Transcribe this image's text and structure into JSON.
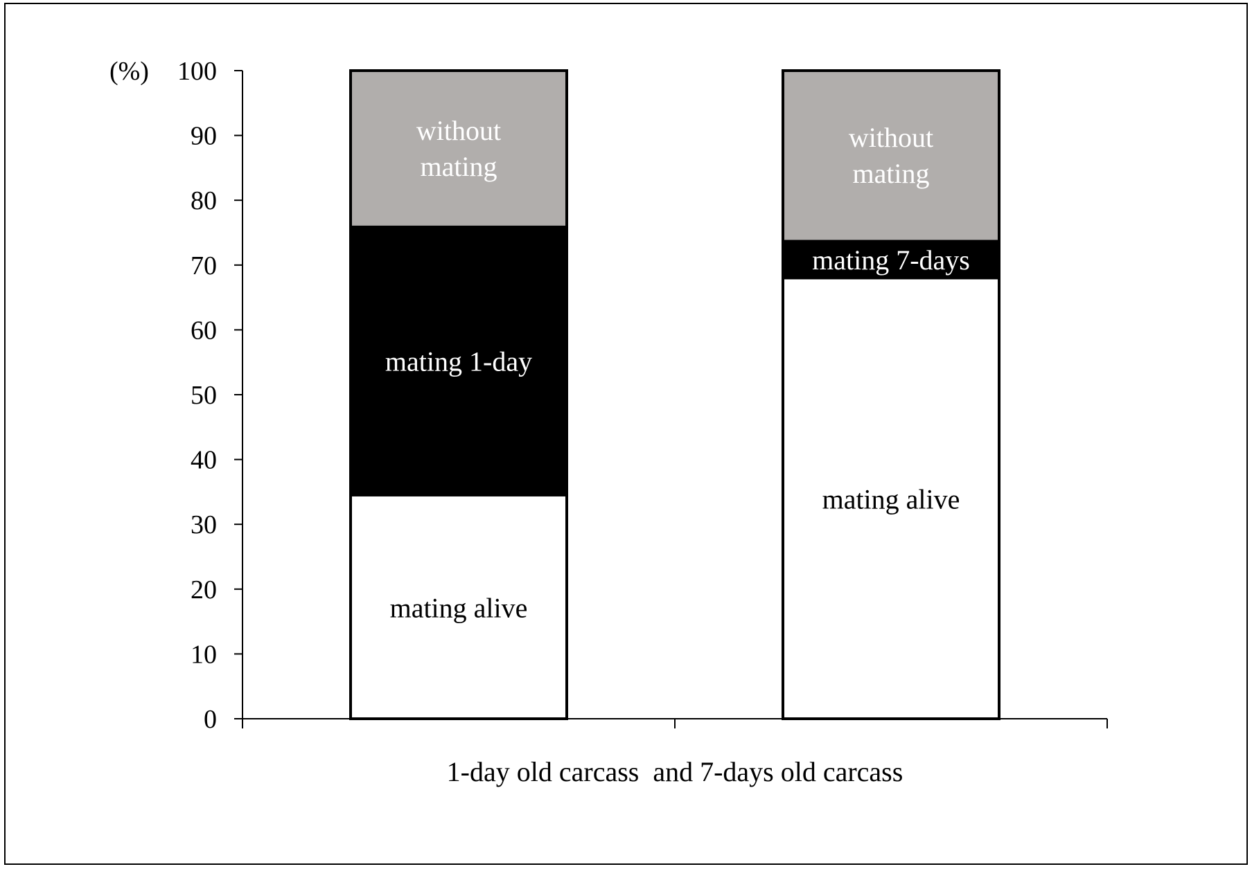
{
  "chart_data": {
    "type": "bar",
    "stacked": true,
    "title": "",
    "ylabel": "(%)",
    "xlabel": "1-day old carcass  and 7-days old carcass",
    "ylim": [
      0,
      100
    ],
    "yticks": [
      0,
      10,
      20,
      30,
      40,
      50,
      60,
      70,
      80,
      90,
      100
    ],
    "grid": false,
    "legend": "none",
    "categories": [
      "1-day old carcass",
      "7-days old carcass"
    ],
    "bars": [
      {
        "segments": [
          {
            "label": "mating alive",
            "value": 34.3,
            "fill": "#ffffff",
            "text_color": "#000000"
          },
          {
            "label": "mating 1-day",
            "value": 41.8,
            "fill": "#000000",
            "text_color": "#ffffff"
          },
          {
            "label": "without\nmating",
            "value": 23.9,
            "fill": "#b1aeac",
            "text_color": "#ffffff"
          }
        ]
      },
      {
        "segments": [
          {
            "label": "mating alive",
            "value": 67.8,
            "fill": "#ffffff",
            "text_color": "#000000"
          },
          {
            "label": "mating 7-days",
            "value": 6.1,
            "fill": "#000000",
            "text_color": "#ffffff"
          },
          {
            "label": "without\nmating",
            "value": 26.1,
            "fill": "#b1aeac",
            "text_color": "#ffffff"
          }
        ]
      }
    ]
  }
}
